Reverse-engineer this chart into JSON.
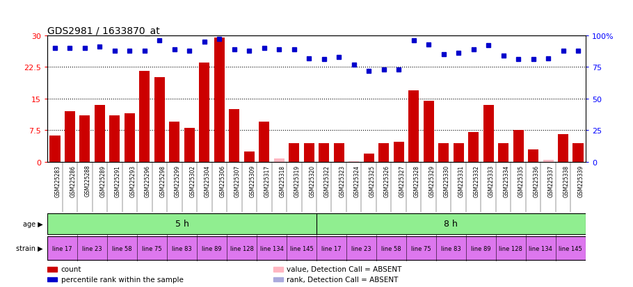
{
  "title": "GDS2981 / 1633870_at",
  "samples": [
    "GSM225283",
    "GSM225286",
    "GSM225288",
    "GSM225289",
    "GSM225291",
    "GSM225293",
    "GSM225296",
    "GSM225298",
    "GSM225299",
    "GSM225302",
    "GSM225304",
    "GSM225306",
    "GSM225307",
    "GSM225309",
    "GSM225317",
    "GSM225318",
    "GSM225319",
    "GSM225320",
    "GSM225322",
    "GSM225323",
    "GSM225324",
    "GSM225325",
    "GSM225326",
    "GSM225327",
    "GSM225328",
    "GSM225329",
    "GSM225330",
    "GSM225331",
    "GSM225332",
    "GSM225333",
    "GSM225334",
    "GSM225335",
    "GSM225336",
    "GSM225337",
    "GSM225338",
    "GSM225339"
  ],
  "counts": [
    6.2,
    12.0,
    11.0,
    13.5,
    11.0,
    11.5,
    21.5,
    20.0,
    9.5,
    8.0,
    23.5,
    29.5,
    12.5,
    2.5,
    9.5,
    0.8,
    4.5,
    4.5,
    4.5,
    4.5,
    0.1,
    2.0,
    4.5,
    4.8,
    17.0,
    14.5,
    4.5,
    4.5,
    7.0,
    13.5,
    4.5,
    7.5,
    3.0,
    0.5,
    6.5,
    4.5
  ],
  "absent_count": [
    false,
    false,
    false,
    false,
    false,
    false,
    false,
    false,
    false,
    false,
    false,
    false,
    false,
    false,
    false,
    true,
    false,
    false,
    false,
    false,
    true,
    false,
    false,
    false,
    false,
    false,
    false,
    false,
    false,
    false,
    false,
    false,
    false,
    true,
    false,
    false
  ],
  "ranks": [
    90,
    90,
    90,
    91,
    88,
    88,
    88,
    96,
    89,
    88,
    95,
    97,
    89,
    88,
    90,
    89,
    89,
    82,
    81,
    83,
    77,
    72,
    73,
    73,
    96,
    93,
    85,
    86,
    89,
    92,
    84,
    81,
    81,
    82,
    88,
    88
  ],
  "absent_rank": [
    false,
    false,
    false,
    false,
    false,
    false,
    false,
    false,
    false,
    false,
    false,
    false,
    false,
    false,
    false,
    false,
    false,
    false,
    false,
    false,
    false,
    false,
    false,
    false,
    false,
    false,
    false,
    false,
    false,
    false,
    false,
    false,
    false,
    false,
    false,
    false
  ],
  "ylim_left": [
    0,
    30
  ],
  "ylim_right": [
    0,
    100
  ],
  "yticks_left": [
    0,
    7.5,
    15,
    22.5,
    30
  ],
  "yticks_right": [
    0,
    25,
    50,
    75,
    100
  ],
  "bar_color": "#CC0000",
  "absent_bar_color": "#FFB6C1",
  "rank_color": "#0000CC",
  "absent_rank_color": "#AAAADD",
  "bg_color": "#FFFFFF",
  "gray_bg": "#CCCCCC",
  "age_labels": [
    "5 h",
    "8 h"
  ],
  "age_color": "#90EE90",
  "strain_color": "#DD77EE",
  "strain_labels": [
    "line 17",
    "line 23",
    "line 58",
    "line 75",
    "line 83",
    "line 89",
    "line 128",
    "line 134",
    "line 145",
    "line 17",
    "line 23",
    "line 58",
    "line 75",
    "line 83",
    "line 89",
    "line 128",
    "line 134",
    "line 145"
  ],
  "n_5h": 18,
  "n_total": 36,
  "legend_items": [
    {
      "symbol": "s",
      "color": "#CC0000",
      "label": "count"
    },
    {
      "symbol": "s",
      "color": "#0000CC",
      "label": "percentile rank within the sample"
    },
    {
      "symbol": "s",
      "color": "#FFB6C1",
      "label": "value, Detection Call = ABSENT"
    },
    {
      "symbol": "s",
      "color": "#AAAADD",
      "label": "rank, Detection Call = ABSENT"
    }
  ]
}
